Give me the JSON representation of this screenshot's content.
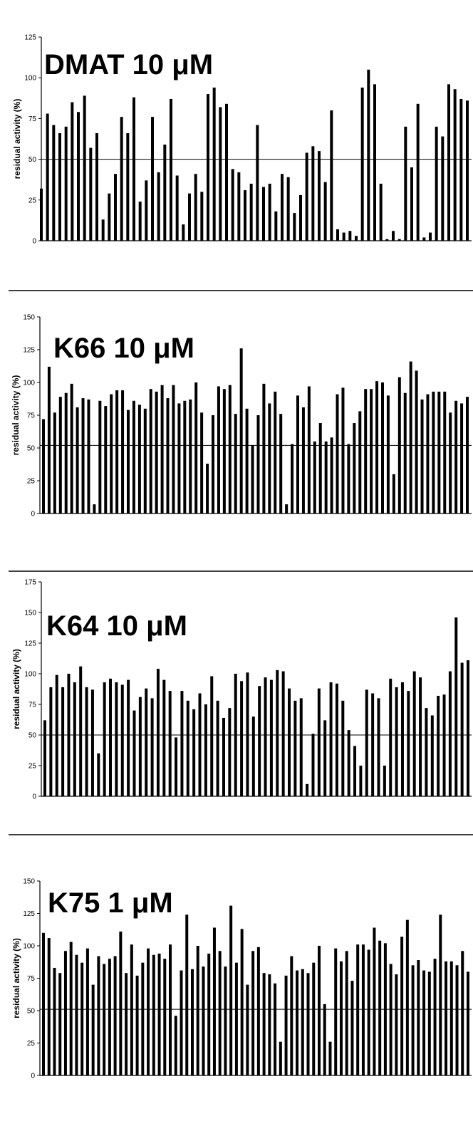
{
  "chart_data": [
    {
      "type": "bar",
      "title": "DMAT 10 μM",
      "ylabel": "residual activity (%)",
      "ylim": [
        0,
        125
      ],
      "yticks": [
        0,
        25,
        50,
        75,
        100,
        125
      ],
      "reference_line": 50,
      "values": [
        32,
        78,
        71,
        66,
        70,
        85,
        79,
        89,
        57,
        66,
        13,
        29,
        41,
        76,
        66,
        88,
        24,
        37,
        76,
        42,
        59,
        87,
        40,
        10,
        29,
        41,
        30,
        90,
        94,
        82,
        84,
        44,
        42,
        31,
        35,
        71,
        33,
        35,
        18,
        41,
        39,
        17,
        28,
        54,
        58,
        55,
        36,
        80,
        7,
        5,
        6,
        3,
        94,
        105,
        96,
        35,
        1,
        6,
        1,
        70,
        45,
        84,
        2,
        5,
        70,
        64,
        96,
        93,
        87,
        86
      ]
    },
    {
      "type": "bar",
      "title": "K66 10 μM",
      "ylabel": "residual activity (%)",
      "ylim": [
        0,
        150
      ],
      "yticks": [
        0,
        25,
        50,
        75,
        100,
        125,
        150
      ],
      "reference_line": 52,
      "values": [
        72,
        112,
        77,
        89,
        92,
        99,
        81,
        88,
        87,
        7,
        86,
        82,
        91,
        94,
        94,
        79,
        86,
        83,
        80,
        95,
        93,
        98,
        88,
        98,
        84,
        86,
        87,
        100,
        77,
        38,
        75,
        97,
        95,
        98,
        76,
        126,
        80,
        52,
        75,
        99,
        84,
        93,
        76,
        7,
        53,
        90,
        81,
        97,
        55,
        69,
        55,
        58,
        91,
        96,
        53,
        69,
        78,
        95,
        95,
        101,
        100,
        90,
        30,
        104,
        92,
        116,
        109,
        87,
        91,
        93,
        93,
        93,
        77,
        86,
        84,
        89
      ]
    },
    {
      "type": "bar",
      "title": "K64 10 μM",
      "ylabel": "residual activity (%)",
      "ylim": [
        0,
        175
      ],
      "yticks": [
        0,
        25,
        50,
        75,
        100,
        125,
        150,
        175
      ],
      "reference_line": 50,
      "values": [
        62,
        89,
        99,
        89,
        100,
        93,
        106,
        89,
        87,
        35,
        93,
        96,
        93,
        91,
        95,
        70,
        81,
        88,
        80,
        104,
        95,
        86,
        48,
        86,
        78,
        71,
        84,
        75,
        98,
        78,
        64,
        72,
        100,
        94,
        101,
        65,
        90,
        97,
        95,
        103,
        102,
        88,
        78,
        80,
        10,
        51,
        88,
        62,
        93,
        92,
        78,
        54,
        41,
        25,
        87,
        84,
        80,
        25,
        96,
        89,
        93,
        86,
        102,
        97,
        72,
        66,
        82,
        83,
        102,
        146,
        109,
        111
      ]
    },
    {
      "type": "bar",
      "title": "K75 1 μM",
      "ylabel": "residual activity (%)",
      "ylim": [
        0,
        150
      ],
      "yticks": [
        0,
        25,
        50,
        75,
        100,
        125,
        150
      ],
      "reference_line": 51,
      "values": [
        110,
        106,
        83,
        79,
        96,
        103,
        93,
        87,
        98,
        70,
        92,
        86,
        90,
        92,
        111,
        79,
        101,
        77,
        87,
        98,
        93,
        94,
        90,
        101,
        46,
        81,
        124,
        82,
        100,
        84,
        94,
        114,
        96,
        84,
        131,
        87,
        113,
        70,
        96,
        99,
        79,
        78,
        71,
        26,
        77,
        92,
        81,
        82,
        79,
        87,
        100,
        55,
        26,
        98,
        88,
        96,
        73,
        101,
        101,
        97,
        114,
        104,
        102,
        86,
        78,
        107,
        120,
        85,
        89,
        81,
        80,
        90,
        124,
        88,
        88,
        85,
        96,
        80
      ]
    }
  ]
}
